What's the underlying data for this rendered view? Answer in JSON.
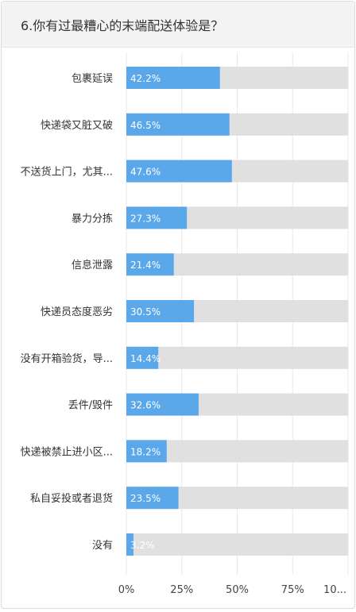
{
  "question": {
    "title": "6.你有过最糟心的末端配送体验是？"
  },
  "chart_data": {
    "type": "bar",
    "orientation": "horizontal",
    "categories": [
      "包裹延误",
      "快递袋又脏又破",
      "不送货上门，尤其...",
      "暴力分拣",
      "信息泄露",
      "快递员态度恶劣",
      "没有开箱验货，导...",
      "丢件/毁件",
      "快递被禁止进小区...",
      "私自妥投或者退货",
      "没有"
    ],
    "values": [
      42.2,
      46.5,
      47.6,
      27.3,
      21.4,
      30.5,
      14.4,
      32.6,
      18.2,
      23.5,
      3.2
    ],
    "value_labels": [
      "42.2%",
      "46.5%",
      "47.6%",
      "27.3%",
      "21.4%",
      "30.5%",
      "14.4%",
      "32.6%",
      "18.2%",
      "23.5%",
      "3.2%"
    ],
    "xlim": [
      0,
      100
    ],
    "x_ticks": [
      "0%",
      "25%",
      "50%",
      "75%",
      "10..."
    ],
    "grid": true,
    "colors": {
      "bar": "#5aa7ea",
      "track": "#e0e0e0",
      "label_on_bar": "#ffffff",
      "label_on_track": "#ffffff"
    }
  }
}
